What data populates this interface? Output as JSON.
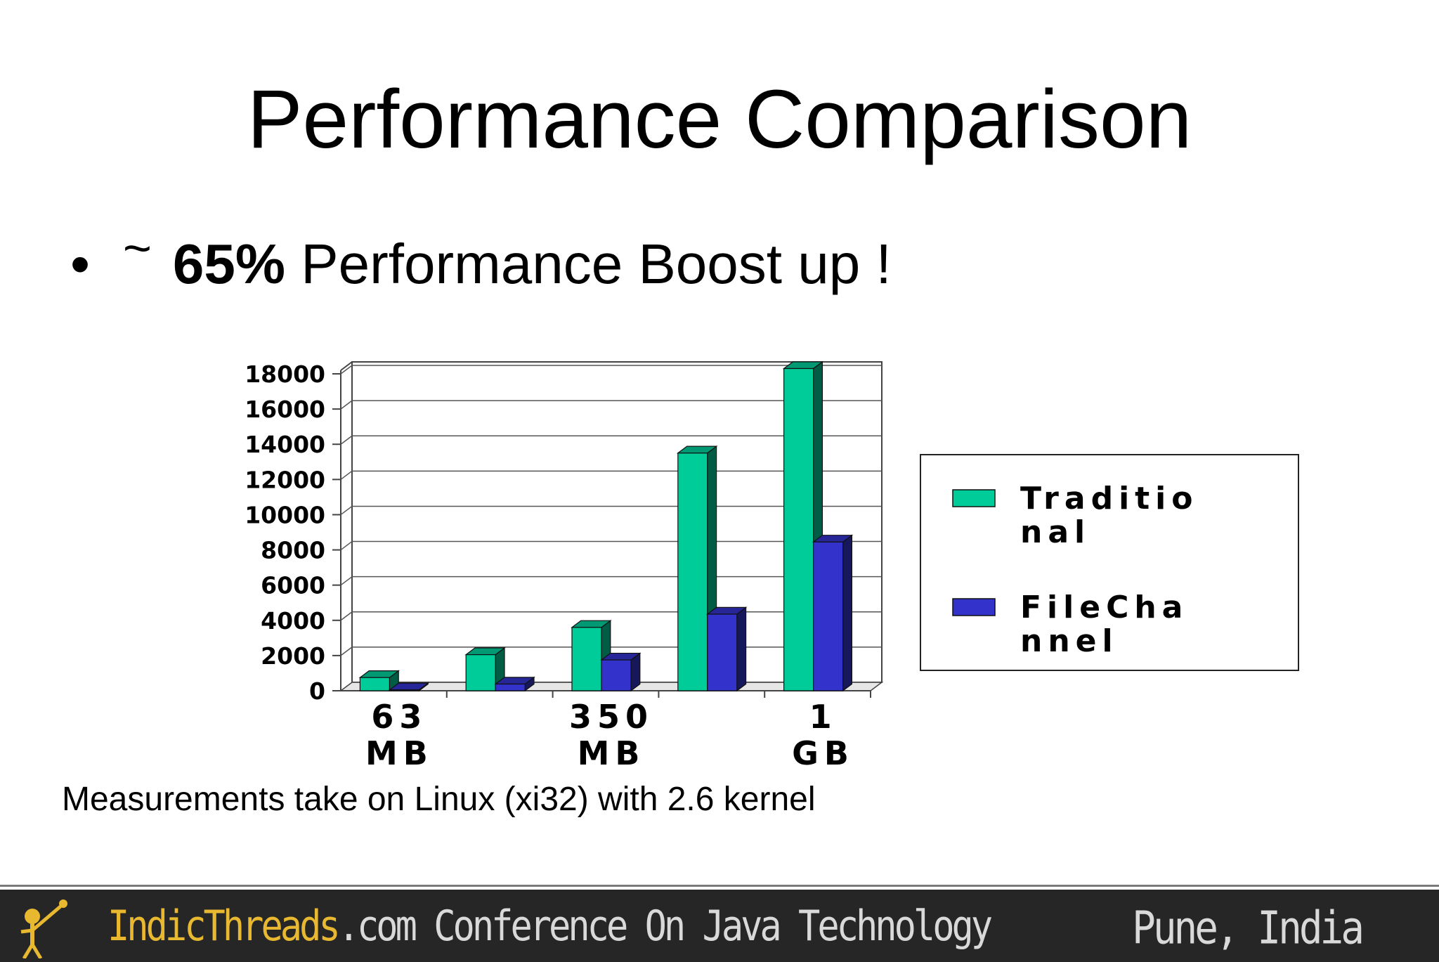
{
  "slide": {
    "title": "Performance Comparison",
    "bullet_prefix": "~",
    "bullet_bold": "65%",
    "bullet_rest": "Performance Boost up !",
    "note": "Measurements take on Linux (xi32) with 2.6 kernel"
  },
  "footer": {
    "brand": "IndicThreads",
    "site_rest": ".com Conference On Java Technology",
    "location": "Pune, India"
  },
  "chart_data": {
    "type": "bar",
    "title": "",
    "xlabel": "",
    "ylabel": "",
    "ylim": [
      0,
      18000
    ],
    "yticks": [
      "0",
      "2000",
      "4000",
      "6000",
      "8000",
      "10000",
      "12000",
      "14000",
      "16000",
      "18000"
    ],
    "categories": [
      "",
      "",
      "",
      "",
      ""
    ],
    "x_tick_labels": [
      {
        "category_index": 0,
        "lines": [
          "63",
          "MB"
        ]
      },
      {
        "category_index": 2,
        "lines": [
          "350",
          "MB"
        ]
      },
      {
        "category_index": 4,
        "lines": [
          "1",
          "GB"
        ]
      }
    ],
    "grid": true,
    "legend_position": "right",
    "series": [
      {
        "name": "Traditional",
        "legend_lines": [
          "Traditio",
          "nal"
        ],
        "color": "#00cc99",
        "values": [
          750,
          2050,
          3600,
          13500,
          18300
        ]
      },
      {
        "name": "FileChannel",
        "legend_lines": [
          "FileCha",
          "nnel"
        ],
        "color": "#3333cc",
        "values": [
          50,
          380,
          1750,
          4350,
          8450
        ]
      }
    ]
  }
}
